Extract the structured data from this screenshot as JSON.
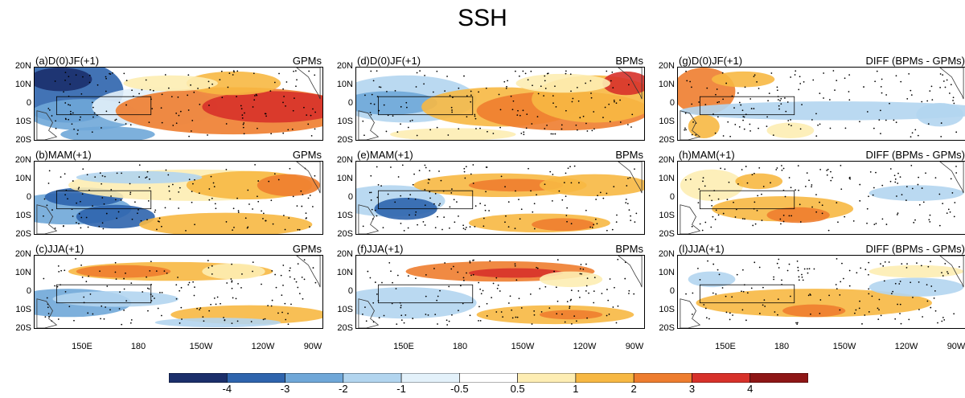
{
  "title": "SSH",
  "panels": [
    {
      "label": "(a)D(0)JF(+1)",
      "tag": "GPMs"
    },
    {
      "label": "(d)D(0)JF(+1)",
      "tag": "BPMs"
    },
    {
      "label": "(g)D(0)JF(+1)",
      "tag": "DIFF (BPMs - GPMs)"
    },
    {
      "label": "(b)MAM(+1)",
      "tag": "GPMs"
    },
    {
      "label": "(e)MAM(+1)",
      "tag": "BPMs"
    },
    {
      "label": "(h)MAM(+1)",
      "tag": "DIFF (BPMs - GPMs)"
    },
    {
      "label": "(c)JJA(+1)",
      "tag": "GPMs"
    },
    {
      "label": "(f)JJA(+1)",
      "tag": "BPMs"
    },
    {
      "label": "(l)JJA(+1)",
      "tag": "DIFF (BPMs - GPMs)"
    }
  ],
  "lat_ticks": [
    "20N",
    "10N",
    "0",
    "10S",
    "20S"
  ],
  "lon_ticks": [
    "150E",
    "180",
    "150W",
    "120W",
    "90W"
  ],
  "colorbar": {
    "labels": [
      "-4",
      "-3",
      "-2",
      "-1",
      "-0.5",
      "0.5",
      "1",
      "2",
      "3",
      "4"
    ],
    "colors": [
      "#1b2f6b",
      "#2e64ad",
      "#6fa7d8",
      "#b2d5ef",
      "#e3f1fa",
      "#ffffff",
      "#fdedb3",
      "#f7b843",
      "#ee7d2f",
      "#d7312a",
      "#8e1616"
    ]
  },
  "panel_colors": {
    "ocean": "#ffffff",
    "land_line": "#333333",
    "box_line": "#000000",
    "stipple": "#000000"
  }
}
